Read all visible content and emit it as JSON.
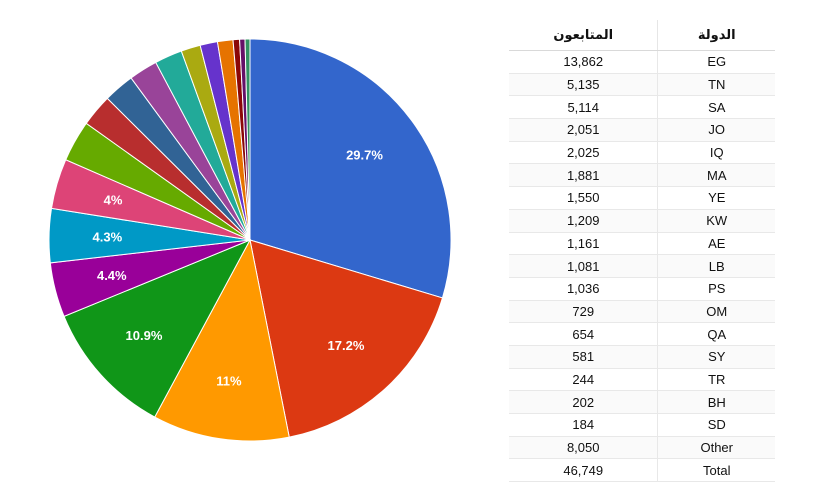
{
  "chart_data": {
    "type": "pie",
    "title": "",
    "categories": [
      "EG",
      "TN",
      "SA",
      "JO",
      "IQ",
      "MA",
      "YE",
      "KW",
      "AE",
      "LB",
      "PS",
      "OM",
      "QA",
      "SY",
      "TR",
      "BH",
      "SD",
      "Other"
    ],
    "values": [
      13862,
      5135,
      5114,
      2051,
      2025,
      1881,
      1550,
      1209,
      1161,
      1081,
      1036,
      729,
      654,
      581,
      244,
      202,
      184,
      8050
    ],
    "slice_order": [
      "EG",
      "TN",
      "SA",
      "Other",
      "JO",
      "IQ",
      "MA",
      "YE",
      "KW",
      "AE",
      "LB",
      "PS",
      "OM",
      "QA",
      "SY",
      "TR",
      "BH",
      "SD"
    ],
    "slice_values": [
      13862,
      8050,
      5135,
      5114,
      2051,
      2025,
      1881,
      1550,
      1209,
      1161,
      1081,
      1036,
      729,
      654,
      581,
      244,
      202,
      184
    ],
    "slice_labels": [
      "29.7%",
      "17.2%",
      "11%",
      "10.9%",
      "4.4%",
      "4.3%",
      "4%",
      "",
      "",
      "",
      "",
      "",
      "",
      "",
      "",
      "",
      "",
      ""
    ],
    "colors": [
      "#3366cc",
      "#dc3912",
      "#ff9900",
      "#109618",
      "#990099",
      "#0099c6",
      "#dd4477",
      "#66aa00",
      "#b82e2e",
      "#316395",
      "#994499",
      "#22aa99",
      "#aaaa11",
      "#6633cc",
      "#e67300",
      "#8b0707",
      "#651067",
      "#329262"
    ],
    "start_angle_deg": 0,
    "direction": "clockwise"
  },
  "table": {
    "headers": {
      "followers": "المتابعون",
      "country": "الدولة"
    },
    "rows": [
      {
        "followers": "13,862",
        "country": "EG"
      },
      {
        "followers": "5,135",
        "country": "TN"
      },
      {
        "followers": "5,114",
        "country": "SA"
      },
      {
        "followers": "2,051",
        "country": "JO"
      },
      {
        "followers": "2,025",
        "country": "IQ"
      },
      {
        "followers": "1,881",
        "country": "MA"
      },
      {
        "followers": "1,550",
        "country": "YE"
      },
      {
        "followers": "1,209",
        "country": "KW"
      },
      {
        "followers": "1,161",
        "country": "AE"
      },
      {
        "followers": "1,081",
        "country": "LB"
      },
      {
        "followers": "1,036",
        "country": "PS"
      },
      {
        "followers": "729",
        "country": "OM"
      },
      {
        "followers": "654",
        "country": "QA"
      },
      {
        "followers": "581",
        "country": "SY"
      },
      {
        "followers": "244",
        "country": "TR"
      },
      {
        "followers": "202",
        "country": "BH"
      },
      {
        "followers": "184",
        "country": "SD"
      },
      {
        "followers": "8,050",
        "country": "Other"
      },
      {
        "followers": "46,749",
        "country": "Total"
      }
    ]
  }
}
